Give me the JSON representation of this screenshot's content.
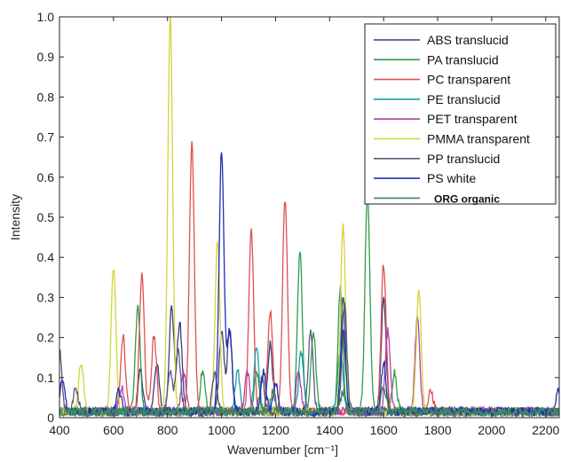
{
  "chart_data": {
    "type": "line",
    "xlabel": "Wavenumber [cm⁻¹]",
    "ylabel": "Intensity",
    "xlim": [
      400,
      2250
    ],
    "ylim": [
      0,
      1.0
    ],
    "xticks": [
      400,
      600,
      800,
      1000,
      1200,
      1400,
      1600,
      1800,
      2000,
      2200
    ],
    "yticks": [
      0,
      0.1,
      0.2,
      0.3,
      0.4,
      0.5,
      0.6,
      0.7,
      0.8,
      0.9,
      1.0
    ],
    "ytick_labels": [
      "0",
      "0.1",
      "0.2",
      "0.3",
      "0.4",
      "0.5",
      "0.6",
      "0.7",
      "0.8",
      "0.9",
      "1.0"
    ],
    "grid": false,
    "legend_position": "top-right",
    "series": [
      {
        "name": "ABS translucid",
        "color": "#3a3f7a",
        "peaks": [
          [
            700,
            0.1
          ],
          [
            760,
            0.12
          ],
          [
            815,
            0.26
          ],
          [
            845,
            0.22
          ],
          [
            1000,
            0.2
          ],
          [
            1030,
            0.2
          ],
          [
            1180,
            0.17
          ],
          [
            1450,
            0.28
          ],
          [
            1600,
            0.28
          ]
        ]
      },
      {
        "name": "PA translucid",
        "color": "#2f9a4e",
        "peaks": [
          [
            690,
            0.26
          ],
          [
            930,
            0.1
          ],
          [
            1130,
            0.1
          ],
          [
            1290,
            0.4
          ],
          [
            1340,
            0.2
          ],
          [
            1440,
            0.31
          ],
          [
            1540,
            0.55
          ],
          [
            1640,
            0.1
          ]
        ]
      },
      {
        "name": "PC transparent",
        "color": "#e05050",
        "peaks": [
          [
            635,
            0.19
          ],
          [
            705,
            0.34
          ],
          [
            750,
            0.19
          ],
          [
            890,
            0.67
          ],
          [
            1110,
            0.45
          ],
          [
            1180,
            0.25
          ],
          [
            1235,
            0.53
          ],
          [
            1600,
            0.37
          ],
          [
            1775,
            0.05
          ]
        ]
      },
      {
        "name": "PE translucid",
        "color": "#1aa0a0",
        "peaks": [
          [
            1060,
            0.1
          ],
          [
            1130,
            0.16
          ],
          [
            1295,
            0.15
          ],
          [
            1440,
            0.16
          ]
        ]
      },
      {
        "name": "PET transparent",
        "color": "#b040b0",
        "peaks": [
          [
            630,
            0.06
          ],
          [
            860,
            0.1
          ],
          [
            1095,
            0.1
          ],
          [
            1285,
            0.1
          ],
          [
            1615,
            0.2
          ],
          [
            1725,
            0.23
          ]
        ]
      },
      {
        "name": "PMMA transparent",
        "color": "#d4d438",
        "peaks": [
          [
            480,
            0.12
          ],
          [
            600,
            0.36
          ],
          [
            810,
            0.99
          ],
          [
            985,
            0.42
          ],
          [
            1450,
            0.47
          ],
          [
            1730,
            0.3
          ]
        ]
      },
      {
        "name": "PP translucid",
        "color": "#5a5a7a",
        "peaks": [
          [
            400,
            0.15
          ],
          [
            460,
            0.06
          ],
          [
            810,
            0.1
          ],
          [
            840,
            0.15
          ],
          [
            975,
            0.1
          ],
          [
            1150,
            0.08
          ],
          [
            1330,
            0.2
          ],
          [
            1455,
            0.27
          ]
        ]
      },
      {
        "name": "PS white",
        "color": "#2030b0",
        "peaks": [
          [
            410,
            0.08
          ],
          [
            620,
            0.05
          ],
          [
            1000,
            0.65
          ],
          [
            1030,
            0.2
          ],
          [
            1155,
            0.1
          ],
          [
            1200,
            0.07
          ],
          [
            1450,
            0.2
          ],
          [
            1600,
            0.12
          ],
          [
            2245,
            0.05
          ]
        ]
      },
      {
        "name": "ORG organic",
        "color": "#3a8a60",
        "peaks": [
          [
            1190,
            0.05
          ],
          [
            1450,
            0.05
          ],
          [
            1600,
            0.06
          ]
        ]
      }
    ]
  }
}
